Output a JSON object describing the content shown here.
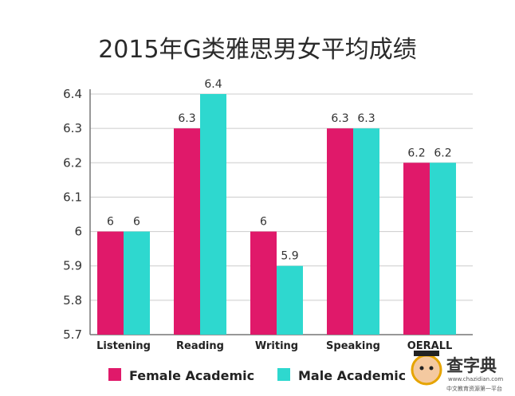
{
  "chart_data": {
    "type": "bar",
    "title": "2015年G类雅思男女平均成绩",
    "categories": [
      "Listening",
      "Reading",
      "Writing",
      "Speaking",
      "OERALL"
    ],
    "series": [
      {
        "name": "Female Academic",
        "color": "#e0196a",
        "values": [
          6,
          6.3,
          6,
          6.3,
          6.2
        ],
        "labels": [
          "6",
          "6.3",
          "6",
          "6.3",
          "6.2"
        ]
      },
      {
        "name": "Male Academic",
        "color": "#2ed8cf",
        "values": [
          6,
          6.4,
          5.9,
          6.3,
          6.2
        ],
        "labels": [
          "6",
          "6.4",
          "5.9",
          "6.3",
          "6.2"
        ]
      }
    ],
    "yticks": [
      "6.4",
      "6.3",
      "6.2",
      "6.1",
      "6",
      "5.9",
      "5.8",
      "5.7"
    ],
    "ylim": [
      5.7,
      6.4
    ],
    "grid": true,
    "legend_position": "bottom"
  },
  "watermark": {
    "brand": "查字典",
    "url": "www.chazidian.com",
    "tagline": "中文教育资源第一平台"
  }
}
